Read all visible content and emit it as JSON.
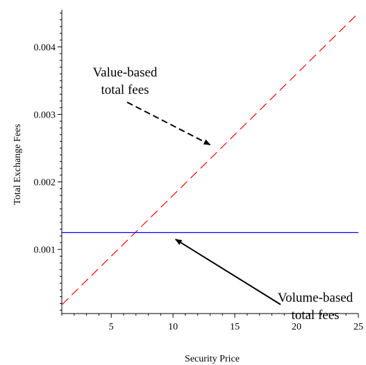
{
  "chart_data": {
    "type": "line",
    "xlabel": "Security Price",
    "ylabel": "Total Exchange Fees",
    "xlim": [
      1,
      25
    ],
    "ylim": [
      5e-05,
      0.00455
    ],
    "x_ticks": [
      5,
      10,
      15,
      20,
      25
    ],
    "y_ticks": [
      0.001,
      0.002,
      0.003,
      0.004
    ],
    "x_tick_labels": [
      "5",
      "10",
      "15",
      "20",
      "25"
    ],
    "y_tick_labels": [
      "0.001",
      "0.002",
      "0.003",
      "0.004"
    ],
    "grid": false,
    "legend": "none",
    "series": [
      {
        "x": [
          1,
          25
        ],
        "y": [
          0.00018,
          0.0045
        ],
        "color": "#ff0000",
        "style": "dashed"
      },
      {
        "x": [
          1,
          25
        ],
        "y": [
          0.00125,
          0.00125
        ],
        "color": "#0000ff",
        "style": "solid"
      }
    ],
    "annotations": [
      {
        "lines": [
          "Value-based",
          "total fees"
        ],
        "arrow": "dashed",
        "arrow_to": [
          13,
          0.00255
        ]
      },
      {
        "lines": [
          "Volume-based",
          "total fees"
        ],
        "arrow": "solid",
        "arrow_to": [
          10.2,
          0.00115
        ]
      }
    ]
  }
}
